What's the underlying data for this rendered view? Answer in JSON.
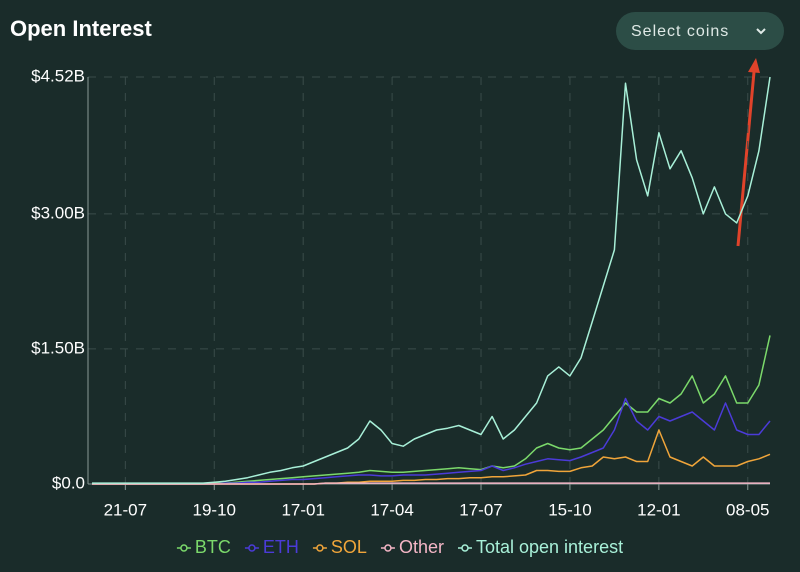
{
  "chart_data": {
    "type": "line",
    "title": "Open Interest",
    "button": "Select coins",
    "categories": [
      null,
      null,
      null,
      "21-07",
      null,
      null,
      null,
      null,
      null,
      null,
      null,
      "19-10",
      null,
      null,
      null,
      null,
      null,
      null,
      null,
      "17-01",
      null,
      null,
      null,
      null,
      null,
      null,
      null,
      "17-04",
      null,
      null,
      null,
      null,
      null,
      null,
      null,
      "17-07",
      null,
      null,
      null,
      null,
      null,
      null,
      null,
      "15-10",
      null,
      null,
      null,
      null,
      null,
      null,
      null,
      "12-01",
      null,
      null,
      null,
      null,
      null,
      null,
      null,
      "08-05",
      null,
      null
    ],
    "ylim": [
      0,
      4.52
    ],
    "yticks": [
      {
        "value": 0,
        "label": "$0.0"
      },
      {
        "value": 1.5,
        "label": "$1.50B"
      },
      {
        "value": 3.0,
        "label": "$3.00B"
      },
      {
        "value": 4.52,
        "label": "$4.52B"
      }
    ],
    "grid": true,
    "legend": "bottom",
    "series": [
      {
        "name": "BTC",
        "color": "#7bd96b",
        "values": [
          0,
          0,
          0,
          0,
          0,
          0,
          0,
          0,
          0,
          0,
          0,
          0.01,
          0.01,
          0.02,
          0.03,
          0.04,
          0.05,
          0.06,
          0.07,
          0.08,
          0.09,
          0.1,
          0.11,
          0.12,
          0.13,
          0.15,
          0.14,
          0.13,
          0.13,
          0.14,
          0.15,
          0.16,
          0.17,
          0.18,
          0.17,
          0.16,
          0.2,
          0.18,
          0.2,
          0.28,
          0.4,
          0.45,
          0.4,
          0.38,
          0.4,
          0.5,
          0.6,
          0.75,
          0.9,
          0.8,
          0.8,
          0.95,
          0.9,
          1.0,
          1.2,
          0.9,
          1.0,
          1.2,
          0.9,
          0.9,
          1.1,
          1.65
        ]
      },
      {
        "name": "ETH",
        "color": "#4b3bd8",
        "values": [
          0,
          0,
          0,
          0,
          0,
          0,
          0,
          0,
          0,
          0,
          0,
          0,
          0.01,
          0.01,
          0.02,
          0.02,
          0.03,
          0.04,
          0.05,
          0.05,
          0.06,
          0.07,
          0.08,
          0.09,
          0.1,
          0.1,
          0.09,
          0.09,
          0.1,
          0.1,
          0.1,
          0.11,
          0.12,
          0.13,
          0.14,
          0.15,
          0.2,
          0.15,
          0.18,
          0.22,
          0.25,
          0.28,
          0.27,
          0.26,
          0.3,
          0.35,
          0.4,
          0.6,
          0.95,
          0.7,
          0.6,
          0.75,
          0.7,
          0.75,
          0.8,
          0.7,
          0.6,
          0.9,
          0.6,
          0.55,
          0.55,
          0.7
        ]
      },
      {
        "name": "SOL",
        "color": "#f0a53a",
        "values": [
          0,
          0,
          0,
          0,
          0,
          0,
          0,
          0,
          0,
          0,
          0,
          0,
          0,
          0,
          0,
          0,
          0,
          0,
          0,
          0,
          0,
          0.01,
          0.01,
          0.02,
          0.02,
          0.03,
          0.03,
          0.03,
          0.04,
          0.04,
          0.05,
          0.05,
          0.06,
          0.06,
          0.07,
          0.07,
          0.08,
          0.08,
          0.09,
          0.1,
          0.15,
          0.15,
          0.14,
          0.14,
          0.18,
          0.2,
          0.3,
          0.28,
          0.3,
          0.25,
          0.25,
          0.6,
          0.3,
          0.25,
          0.2,
          0.3,
          0.2,
          0.2,
          0.2,
          0.25,
          0.28,
          0.33
        ]
      },
      {
        "name": "Other",
        "color": "#f4b6c6",
        "values": [
          0,
          0,
          0,
          0,
          0,
          0,
          0,
          0,
          0,
          0,
          0,
          0,
          0,
          0,
          0,
          0,
          0,
          0,
          0,
          0,
          0,
          0.01,
          0.01,
          0.01,
          0.01,
          0.01,
          0.01,
          0.01,
          0.01,
          0.01,
          0.01,
          0.01,
          0.01,
          0.01,
          0.01,
          0.01,
          0.01,
          0.01,
          0.01,
          0.01,
          0.01,
          0.01,
          0.01,
          0.01,
          0.01,
          0.01,
          0.01,
          0.01,
          0.01,
          0.01,
          0.01,
          0.01,
          0.01,
          0.01,
          0.01,
          0.01,
          0.01,
          0.01,
          0.01,
          0.01,
          0.01,
          0.01
        ]
      },
      {
        "name": "Total open interest",
        "color": "#a8f0d8",
        "values": [
          0.01,
          0.01,
          0.01,
          0.01,
          0.01,
          0.01,
          0.01,
          0.01,
          0.01,
          0.01,
          0.01,
          0.02,
          0.03,
          0.05,
          0.07,
          0.1,
          0.13,
          0.15,
          0.18,
          0.2,
          0.25,
          0.3,
          0.35,
          0.4,
          0.5,
          0.7,
          0.6,
          0.45,
          0.42,
          0.5,
          0.55,
          0.6,
          0.62,
          0.65,
          0.6,
          0.55,
          0.75,
          0.5,
          0.6,
          0.75,
          0.9,
          1.2,
          1.3,
          1.2,
          1.4,
          1.8,
          2.2,
          2.6,
          4.45,
          3.6,
          3.2,
          3.9,
          3.5,
          3.7,
          3.4,
          3.0,
          3.3,
          3.0,
          2.9,
          3.2,
          3.7,
          4.52
        ]
      }
    ]
  }
}
